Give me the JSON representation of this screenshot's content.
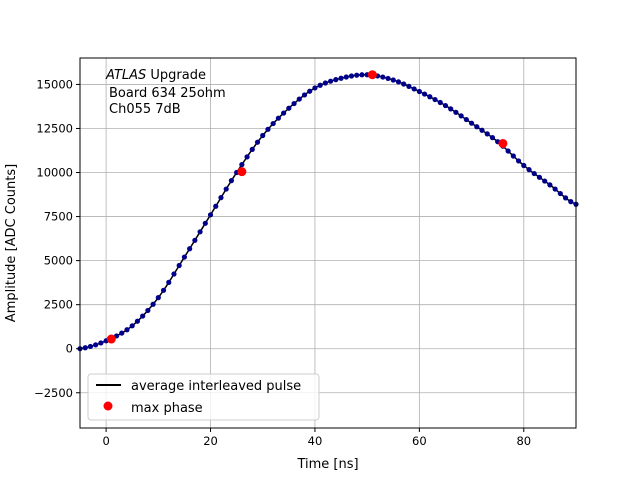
{
  "chart_data": {
    "type": "line",
    "xlabel": "Time [ns]",
    "ylabel": "Amplitude [ADC Counts]",
    "xlim": [
      -5,
      90
    ],
    "ylim": [
      -4500,
      16500
    ],
    "xticks": [
      0,
      20,
      40,
      60,
      80
    ],
    "yticks": [
      -2500,
      0,
      2500,
      5000,
      7500,
      10000,
      12500,
      15000
    ],
    "grid": true,
    "annotation": {
      "line1_italic": "ATLAS",
      "line1_rest": " Upgrade",
      "line2": "Board 634 25ohm",
      "line3": "Ch055 7dB"
    },
    "legend": {
      "placement": "lower-left",
      "entries": [
        {
          "label": "average interleaved pulse",
          "color": "#000000",
          "marker": "line"
        },
        {
          "label": "max phase",
          "color": "#ff0000",
          "marker": "dot"
        }
      ]
    },
    "pulse_color": "#00008b",
    "pulse_series": {
      "x": [
        -5,
        0,
        5,
        10,
        15,
        20,
        25,
        30,
        35,
        40,
        45,
        50,
        55,
        60,
        65,
        70,
        75,
        80,
        85,
        90
      ],
      "y": [
        0,
        450,
        1300,
        2900,
        5200,
        7600,
        10000,
        12100,
        13650,
        14800,
        15350,
        15550,
        15250,
        14600,
        13800,
        12800,
        11750,
        10400,
        9300,
        8200
      ]
    },
    "max_phase": {
      "x": [
        1,
        26,
        51,
        76
      ],
      "y": [
        550,
        10050,
        15550,
        11650
      ]
    }
  }
}
